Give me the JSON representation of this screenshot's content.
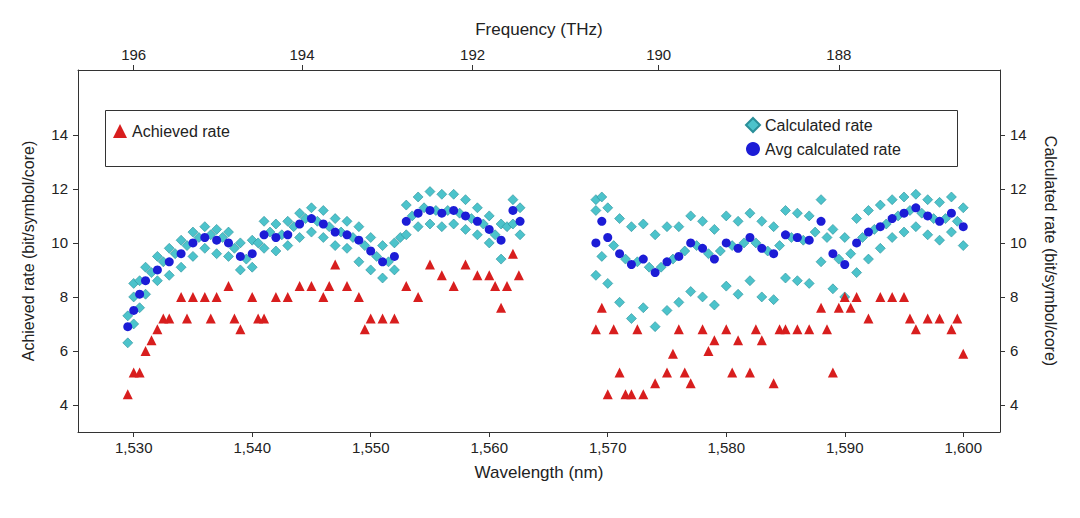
{
  "chart_data": {
    "type": "scatter",
    "xlabel": "Wavelength (nm)",
    "x2label": "Frequency (THz)",
    "ylabel": "Achieved rate (bit/symbol/core)",
    "y2label": "Calculated rate (bit/symbol/core)",
    "xlim": [
      1525.3,
      1603.1
    ],
    "xticks": [
      {
        "value": 1530,
        "label": "1,530"
      },
      {
        "value": 1540,
        "label": "1,540"
      },
      {
        "value": 1550,
        "label": "1,550"
      },
      {
        "value": 1560,
        "label": "1,560"
      },
      {
        "value": 1570,
        "label": "1,570"
      },
      {
        "value": 1580,
        "label": "1,580"
      },
      {
        "value": 1590,
        "label": "1,590"
      },
      {
        "value": 1600,
        "label": "1,600"
      }
    ],
    "x2ticks": [
      {
        "value": 1530.0,
        "label": "196"
      },
      {
        "value": 1544.2,
        "label": "194"
      },
      {
        "value": 1558.6,
        "label": "192"
      },
      {
        "value": 1574.3,
        "label": "190"
      },
      {
        "value": 1589.5,
        "label": "188"
      }
    ],
    "ylim": [
      3,
      16.4
    ],
    "yticks": [
      4,
      6,
      8,
      10,
      12,
      14
    ],
    "y2lim": [
      3,
      16.4
    ],
    "y2ticks": [
      4,
      6,
      8,
      10,
      12,
      14
    ],
    "grid": false,
    "legend": "top",
    "series": [
      {
        "name": "Calculated rate",
        "color": "#4cc3cb",
        "marker": "diamond",
        "axis": "y2",
        "x": [
          1529.5,
          1529.5,
          1530,
          1530,
          1530,
          1530.5,
          1530.5,
          1531,
          1531,
          1531.5,
          1532,
          1532,
          1532.5,
          1533,
          1533,
          1533.5,
          1534,
          1534,
          1534.5,
          1535,
          1535,
          1535.5,
          1536,
          1536,
          1536.5,
          1537,
          1537,
          1537.5,
          1538,
          1538,
          1538.5,
          1539,
          1539,
          1539.5,
          1540,
          1540,
          1540.5,
          1541,
          1541,
          1541.5,
          1542,
          1542,
          1542.5,
          1543,
          1543,
          1543.5,
          1544,
          1544,
          1544.5,
          1545,
          1545,
          1545.5,
          1546,
          1546,
          1546.5,
          1547,
          1547,
          1547.5,
          1548,
          1548,
          1548.5,
          1549,
          1549,
          1549.5,
          1550,
          1550,
          1550.5,
          1551,
          1551,
          1551.5,
          1552,
          1552,
          1552.5,
          1553,
          1553,
          1553.5,
          1554,
          1554,
          1554.5,
          1555,
          1555,
          1555.5,
          1556,
          1556,
          1556.5,
          1557,
          1557,
          1557.5,
          1558,
          1558,
          1558.5,
          1559,
          1559,
          1559.5,
          1560,
          1560,
          1560.5,
          1561,
          1561,
          1561.5,
          1562,
          1562,
          1562.6,
          1562.6,
          1569,
          1569,
          1569,
          1569.5,
          1569.5,
          1570,
          1570,
          1570.5,
          1571,
          1571,
          1571.5,
          1572,
          1572,
          1572.5,
          1573,
          1573,
          1573.5,
          1574,
          1574,
          1574.5,
          1575,
          1575,
          1575.5,
          1576,
          1576,
          1576.5,
          1577,
          1577,
          1577.5,
          1578,
          1578,
          1578.5,
          1579,
          1579,
          1579.5,
          1580,
          1580,
          1580.5,
          1581,
          1581,
          1581.5,
          1582,
          1582,
          1582.5,
          1583,
          1583,
          1583.5,
          1584,
          1584,
          1584.5,
          1585,
          1585,
          1585.5,
          1586,
          1586,
          1586.5,
          1587,
          1587,
          1587.5,
          1588,
          1588,
          1588.5,
          1589,
          1589,
          1589.5,
          1590,
          1590,
          1590.5,
          1591,
          1591,
          1591.5,
          1592,
          1592,
          1592.5,
          1593,
          1593,
          1593.5,
          1594,
          1594,
          1594.5,
          1595,
          1595,
          1595.5,
          1596,
          1596,
          1596.5,
          1597,
          1597,
          1597.5,
          1598,
          1598,
          1598.5,
          1599,
          1599,
          1599.5,
          1600,
          1600
        ],
        "values": [
          6.3,
          7.3,
          7.0,
          8.0,
          8.5,
          7.6,
          8.6,
          8.1,
          9.1,
          8.9,
          8.6,
          9.5,
          9.3,
          8.8,
          9.8,
          9.6,
          9.1,
          10.1,
          9.9,
          9.5,
          10.4,
          10.2,
          9.8,
          10.6,
          10.3,
          9.6,
          10.5,
          10.2,
          9.5,
          10.4,
          9.8,
          9.0,
          10.0,
          9.4,
          9.1,
          10.1,
          10.0,
          9.8,
          10.8,
          10.4,
          9.7,
          10.7,
          10.3,
          9.9,
          10.8,
          10.6,
          10.2,
          11.1,
          10.9,
          10.4,
          11.3,
          10.8,
          10.2,
          11.2,
          10.6,
          9.9,
          10.9,
          10.4,
          9.8,
          10.8,
          10.2,
          9.3,
          10.6,
          9.9,
          9.0,
          10.2,
          9.5,
          8.7,
          9.9,
          9.3,
          9.0,
          10.0,
          10.2,
          10.3,
          11.4,
          11.0,
          10.6,
          11.7,
          11.3,
          10.7,
          11.9,
          11.2,
          10.6,
          11.8,
          11.2,
          10.7,
          11.8,
          11.1,
          10.5,
          11.6,
          10.9,
          10.3,
          11.3,
          10.7,
          10.0,
          11.0,
          10.3,
          9.4,
          10.7,
          10.6,
          10.7,
          11.6,
          10.3,
          11.3,
          8.8,
          11.2,
          11.6,
          9.5,
          11.7,
          8.5,
          11.3,
          9.9,
          7.8,
          10.9,
          9.4,
          7.2,
          10.6,
          9.3,
          7.6,
          10.7,
          9.1,
          6.9,
          10.3,
          9.1,
          7.5,
          10.6,
          9.4,
          7.8,
          10.6,
          9.7,
          8.2,
          11.0,
          9.9,
          8.0,
          10.8,
          9.6,
          7.7,
          10.5,
          9.7,
          8.4,
          11.0,
          9.9,
          8.1,
          10.8,
          10.0,
          8.6,
          11.1,
          10.0,
          8.0,
          10.8,
          9.7,
          7.9,
          10.6,
          9.9,
          8.7,
          11.2,
          10.2,
          8.6,
          11.1,
          10.1,
          8.5,
          11.0,
          10.4,
          9.3,
          11.6,
          10.2,
          8.3,
          10.5,
          9.4,
          8.0,
          10.2,
          9.6,
          8.9,
          10.9,
          10.2,
          9.4,
          11.2,
          10.5,
          9.8,
          11.4,
          10.7,
          10.2,
          11.6,
          11.0,
          10.4,
          11.7,
          11.2,
          10.6,
          11.8,
          11.1,
          10.3,
          11.6,
          10.9,
          10.1,
          11.5,
          10.9,
          10.4,
          11.7,
          10.8,
          9.9,
          11.3
        ]
      },
      {
        "name": "Avg calculated rate",
        "color": "#1c1cd6",
        "marker": "circle",
        "axis": "y2",
        "x": [
          1529.5,
          1530,
          1530.5,
          1531,
          1532,
          1533,
          1534,
          1535,
          1536,
          1537,
          1538,
          1539,
          1540,
          1541,
          1542,
          1543,
          1544,
          1545,
          1546,
          1547,
          1548,
          1549,
          1550,
          1551,
          1552,
          1553,
          1554,
          1555,
          1556,
          1557,
          1558,
          1559,
          1560,
          1561,
          1562,
          1562.6,
          1569,
          1569.5,
          1570,
          1571,
          1572,
          1573,
          1574,
          1575,
          1576,
          1577,
          1578,
          1579,
          1580,
          1581,
          1582,
          1583,
          1584,
          1585,
          1586,
          1587,
          1588,
          1589,
          1590,
          1591,
          1592,
          1593,
          1594,
          1595,
          1596,
          1597,
          1598,
          1599,
          1600
        ],
        "values": [
          6.9,
          7.5,
          8.1,
          8.6,
          9.0,
          9.3,
          9.6,
          10.0,
          10.2,
          10.1,
          10.0,
          9.5,
          9.6,
          10.3,
          10.2,
          10.3,
          10.7,
          10.9,
          10.7,
          10.4,
          10.3,
          10.1,
          9.7,
          9.3,
          9.5,
          10.8,
          11.1,
          11.2,
          11.1,
          11.2,
          11.0,
          10.8,
          10.5,
          10.1,
          11.2,
          10.8,
          10.0,
          10.8,
          10.2,
          9.6,
          9.2,
          9.4,
          8.9,
          9.3,
          9.5,
          10.0,
          9.8,
          9.4,
          10.0,
          9.8,
          10.2,
          9.8,
          9.6,
          10.3,
          10.2,
          10.1,
          10.8,
          9.6,
          9.2,
          10.0,
          10.4,
          10.6,
          10.9,
          11.1,
          11.3,
          11.0,
          10.8,
          11.1,
          10.6
        ]
      },
      {
        "name": "Achieved rate",
        "color": "#d81e1e",
        "marker": "triangle",
        "x": [
          1529.5,
          1530,
          1530.5,
          1531,
          1531.5,
          1532,
          1532.5,
          1533,
          1534,
          1534.5,
          1535,
          1536,
          1536.5,
          1537,
          1538,
          1538.5,
          1539,
          1540,
          1540.5,
          1541,
          1542,
          1543,
          1544,
          1545,
          1546,
          1546.5,
          1547,
          1548,
          1549,
          1549.5,
          1550,
          1551,
          1552,
          1553,
          1554,
          1555,
          1556,
          1557,
          1558,
          1559,
          1560,
          1560.5,
          1561,
          1561.5,
          1562,
          1562.5,
          1569,
          1569.5,
          1570,
          1570.5,
          1571,
          1571.5,
          1572,
          1572.5,
          1573,
          1574,
          1575,
          1575.5,
          1576,
          1576.5,
          1577,
          1578,
          1578.5,
          1579,
          1580,
          1580.5,
          1581,
          1582,
          1582.5,
          1583,
          1584,
          1584.5,
          1585,
          1586,
          1587,
          1588,
          1588.5,
          1589,
          1589.5,
          1590,
          1590.5,
          1591,
          1592,
          1593,
          1594,
          1595,
          1595.5,
          1596,
          1597,
          1598,
          1599,
          1599.5,
          1600
        ],
        "values": [
          4.4,
          5.2,
          5.2,
          6.0,
          6.4,
          6.8,
          7.2,
          7.2,
          8.0,
          7.2,
          8.0,
          8.0,
          7.2,
          8.0,
          8.4,
          7.2,
          6.8,
          8.0,
          7.2,
          7.2,
          8.0,
          8.0,
          8.4,
          8.4,
          8.0,
          8.4,
          9.2,
          8.4,
          8.0,
          6.8,
          7.2,
          7.2,
          7.2,
          8.4,
          8.0,
          9.2,
          8.8,
          8.4,
          9.2,
          8.8,
          8.8,
          8.4,
          7.6,
          8.4,
          9.6,
          8.8,
          6.8,
          7.6,
          4.4,
          6.8,
          5.2,
          4.4,
          4.4,
          6.8,
          4.4,
          4.8,
          5.2,
          5.9,
          6.8,
          5.2,
          4.8,
          6.8,
          6.0,
          6.4,
          6.8,
          5.2,
          6.4,
          5.2,
          6.8,
          6.4,
          4.8,
          6.8,
          6.8,
          6.8,
          6.8,
          7.6,
          6.8,
          5.2,
          7.6,
          8.0,
          7.6,
          8.0,
          7.2,
          8.0,
          8.0,
          8.0,
          7.2,
          6.8,
          7.2,
          7.2,
          6.8,
          7.2,
          5.9
        ]
      }
    ]
  }
}
